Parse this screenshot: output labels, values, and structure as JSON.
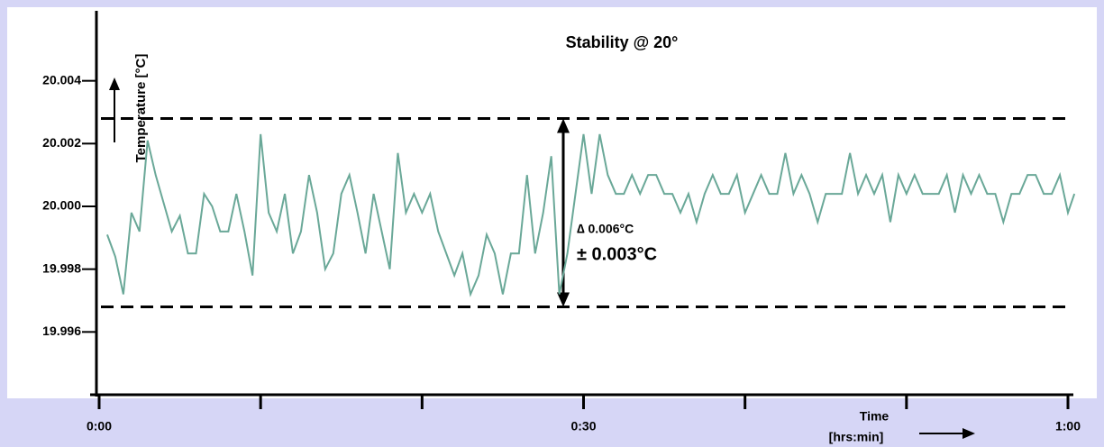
{
  "chart_data": {
    "type": "line",
    "title": "Stability @ 20°",
    "y_label": "Temperature [°C]",
    "x_label": [
      "Time",
      "[hrs:min]"
    ],
    "annotations": [
      "∆ 0.006°C",
      "± 0.003°C"
    ],
    "limits": [
      20.0028,
      19.9968
    ],
    "xlim": [
      0,
      60
    ],
    "ylim": [
      19.994,
      20.006
    ],
    "xticks": [
      {
        "value": 0,
        "label": "0:00"
      },
      {
        "value": 30,
        "label": "0:30"
      },
      {
        "value": 60,
        "label": "1:00"
      }
    ],
    "xminorticks": [
      10,
      20,
      40,
      50
    ],
    "yticks": [
      {
        "value": 19.996,
        "label": "19.996"
      },
      {
        "value": 19.998,
        "label": "19.998"
      },
      {
        "value": 20.0,
        "label": "20.000"
      },
      {
        "value": 20.002,
        "label": "20.002"
      },
      {
        "value": 20.004,
        "label": "20.004"
      }
    ],
    "series": [
      {
        "name": null,
        "color": "#6aa898",
        "x": [
          0.5,
          1,
          1.5,
          2,
          2.5,
          3,
          3.5,
          4,
          4.5,
          5,
          5.5,
          6,
          6.5,
          7,
          7.5,
          8,
          8.5,
          9,
          9.5,
          10,
          10.5,
          11,
          11.5,
          12,
          12.5,
          13,
          13.5,
          14,
          14.5,
          15,
          15.5,
          16,
          16.5,
          17,
          17.5,
          18,
          18.5,
          19,
          19.5,
          20,
          20.5,
          21,
          21.5,
          22,
          22.5,
          23,
          23.5,
          24,
          24.5,
          25,
          25.5,
          26,
          26.5,
          27,
          27.5,
          28,
          28.5,
          29,
          29.5,
          30,
          30.5,
          31,
          31.5,
          32,
          32.5,
          33,
          33.5,
          34,
          34.5,
          35,
          35.5,
          36,
          36.5,
          37,
          37.5,
          38,
          38.5,
          39,
          39.5,
          40,
          40.5,
          41,
          41.5,
          42,
          42.5,
          43,
          43.5,
          44,
          44.5,
          45,
          45.5,
          46,
          46.5,
          47,
          47.5,
          48,
          48.5,
          49,
          49.5,
          50,
          50.5,
          51,
          51.5,
          52,
          52.5,
          53,
          53.5,
          54,
          54.5,
          55,
          55.5,
          56,
          56.5,
          57,
          57.5,
          58,
          58.5,
          59,
          59.5,
          60,
          60.4
        ],
        "values": [
          19.9991,
          19.9984,
          19.9972,
          19.9998,
          19.9992,
          20.0021,
          20.001,
          20.0001,
          19.9992,
          19.9997,
          19.9985,
          19.9985,
          20.0004,
          20.0,
          19.9992,
          19.9992,
          20.0004,
          19.9992,
          19.9978,
          20.0023,
          19.9998,
          19.9992,
          20.0004,
          19.9985,
          19.9992,
          20.001,
          19.9998,
          19.998,
          19.9985,
          20.0004,
          20.001,
          19.9998,
          19.9985,
          20.0004,
          19.9992,
          19.998,
          20.0017,
          19.9998,
          20.0004,
          19.9998,
          20.0004,
          19.9992,
          19.9985,
          19.9978,
          19.9985,
          19.9972,
          19.9978,
          19.9991,
          19.9985,
          19.9972,
          19.9985,
          19.9985,
          20.001,
          19.9985,
          19.9998,
          20.0016,
          19.9972,
          19.9985,
          20.0004,
          20.0023,
          20.0004,
          20.0023,
          20.001,
          20.0004,
          20.0004,
          20.001,
          20.0004,
          20.001,
          20.001,
          20.0004,
          20.0004,
          19.9998,
          20.0004,
          19.9995,
          20.0004,
          20.001,
          20.0004,
          20.0004,
          20.001,
          19.9998,
          20.0004,
          20.001,
          20.0004,
          20.0004,
          20.0017,
          20.0004,
          20.001,
          20.0004,
          19.9995,
          20.0004,
          20.0004,
          20.0004,
          20.0017,
          20.0004,
          20.001,
          20.0004,
          20.001,
          19.9995,
          20.001,
          20.0004,
          20.001,
          20.0004,
          20.0004,
          20.0004,
          20.001,
          19.9998,
          20.001,
          20.0004,
          20.001,
          20.0004,
          20.0004,
          19.9995,
          20.0004,
          20.0004,
          20.001,
          20.001,
          20.0004,
          20.0004,
          20.001,
          19.9998,
          20.0004
        ]
      }
    ]
  }
}
